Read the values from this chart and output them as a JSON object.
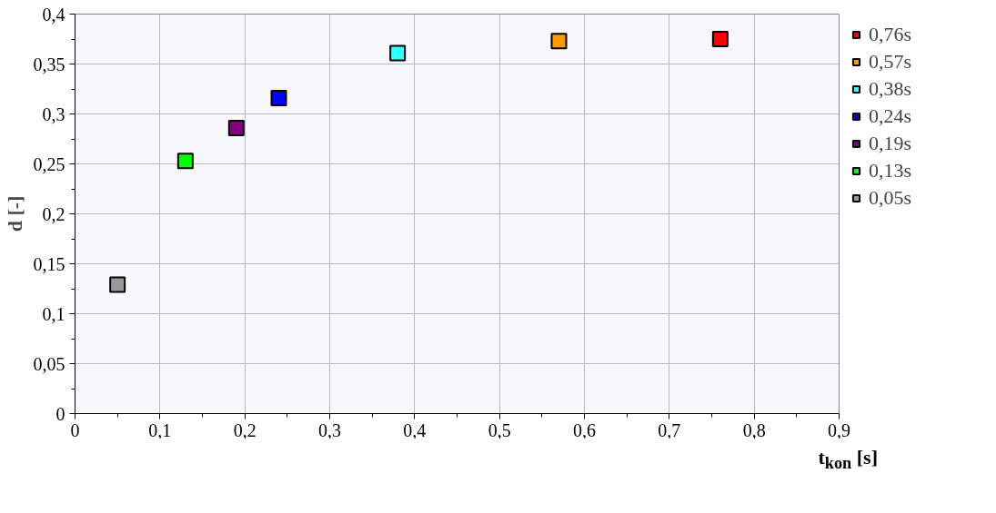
{
  "chart_data": {
    "type": "scatter",
    "xlabel": "t$_{kon}$ [s]",
    "ylabel": "d [-]",
    "marker": "square",
    "grid": true,
    "legend": "right",
    "xlim": [
      0,
      0.9
    ],
    "ylim": [
      0,
      0.4
    ],
    "xticks": [
      0,
      {
        "value": 0.1,
        "label": "0,1"
      },
      {
        "value": 0.2,
        "label": "0,2"
      },
      {
        "value": 0.3,
        "label": "0,3"
      },
      {
        "value": 0.4,
        "label": "0,4"
      },
      {
        "value": 0.5,
        "label": "0,5"
      },
      {
        "value": 0.6,
        "label": "0,6"
      },
      {
        "value": 0.7,
        "label": "0,7"
      },
      {
        "value": 0.8,
        "label": "0,8"
      },
      {
        "value": 0.9,
        "label": "0,9"
      }
    ],
    "yticks": [
      0,
      {
        "value": 0.05,
        "label": "0,05"
      },
      {
        "value": 0.1,
        "label": "0,1"
      },
      {
        "value": 0.15,
        "label": "0,15"
      },
      {
        "value": 0.2,
        "label": "0,2"
      },
      {
        "value": 0.25,
        "label": "0,25"
      },
      {
        "value": 0.3,
        "label": "0,3"
      },
      {
        "value": 0.35,
        "label": "0,35"
      },
      {
        "value": 0.4,
        "label": "0,4"
      }
    ],
    "series": [
      {
        "name": "0,76s",
        "color": "#ff0000",
        "x": [
          0.76
        ],
        "values": [
          0.375
        ]
      },
      {
        "name": "0,57s",
        "color": "#ff9900",
        "x": [
          0.57
        ],
        "values": [
          0.373
        ]
      },
      {
        "name": "0,38s",
        "color": "#33ffff",
        "x": [
          0.38
        ],
        "values": [
          0.361
        ]
      },
      {
        "name": "0,24s",
        "color": "#0000ff",
        "x": [
          0.24
        ],
        "values": [
          0.316
        ]
      },
      {
        "name": "0,19s",
        "color": "#800080",
        "x": [
          0.19
        ],
        "values": [
          0.286
        ]
      },
      {
        "name": "0,13s",
        "color": "#00ff00",
        "x": [
          0.13
        ],
        "values": [
          0.253
        ]
      },
      {
        "name": "0,05s",
        "color": "#999999",
        "x": [
          0.05
        ],
        "values": [
          0.129
        ]
      }
    ]
  }
}
